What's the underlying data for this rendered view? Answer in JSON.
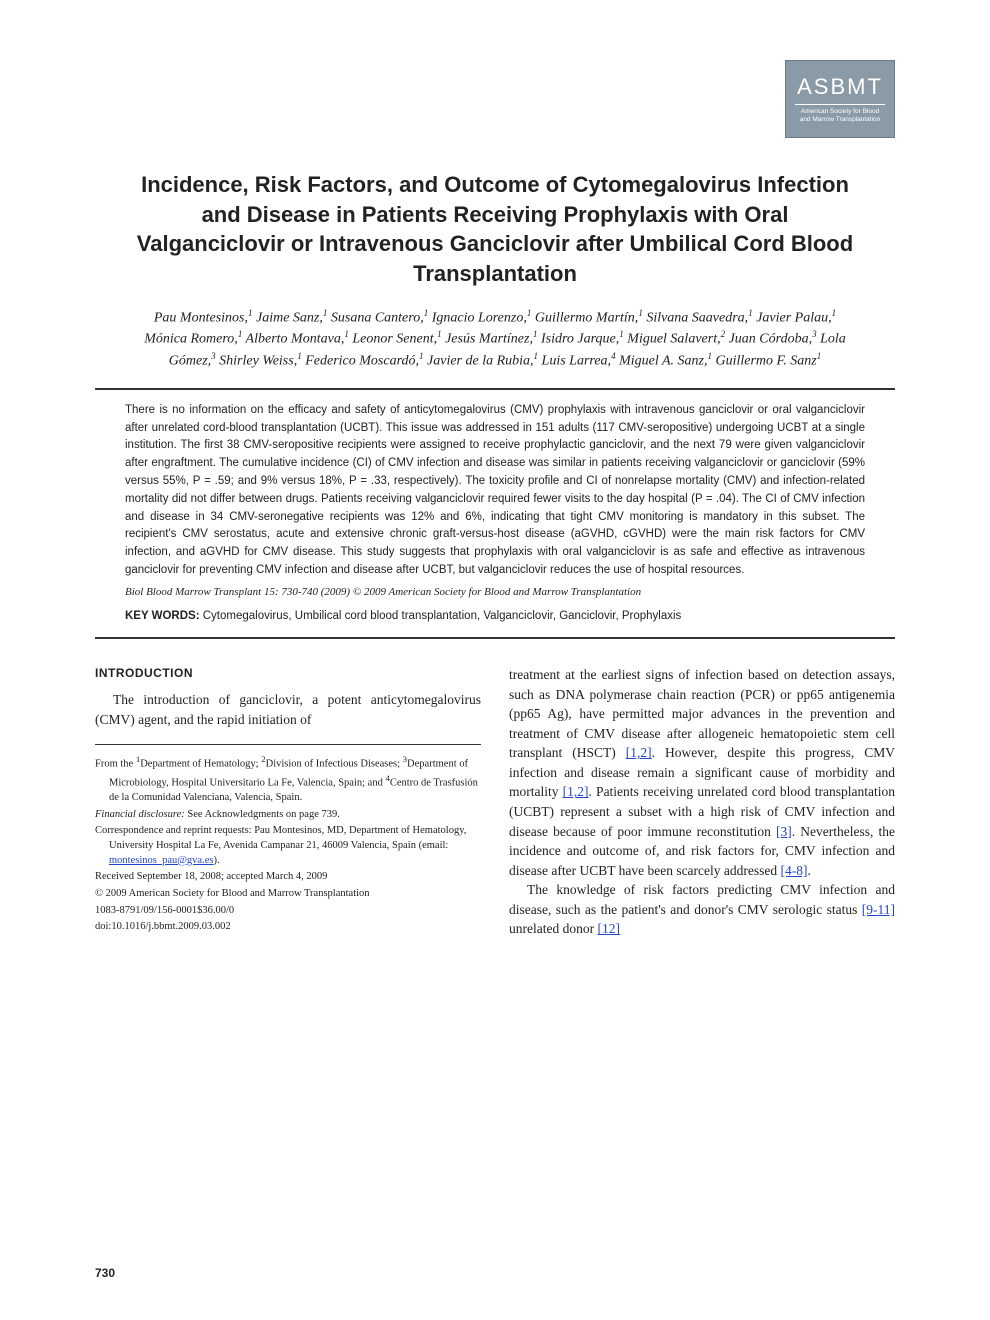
{
  "logo": {
    "main": "ASBMT",
    "sub": "American Society for Blood and Marrow Transplantation"
  },
  "title": "Incidence, Risk Factors, and Outcome of Cytomegalovirus Infection and Disease in Patients Receiving Prophylaxis with Oral Valganciclovir or Intravenous Ganciclovir after Umbilical Cord Blood Transplantation",
  "authors_html": "Pau Montesinos,<sup>1</sup> Jaime Sanz,<sup>1</sup> Susana Cantero,<sup>1</sup> Ignacio Lorenzo,<sup>1</sup> Guillermo Martín,<sup>1</sup> Silvana Saavedra,<sup>1</sup> Javier Palau,<sup>1</sup> Mónica Romero,<sup>1</sup> Alberto Montava,<sup>1</sup> Leonor Senent,<sup>1</sup> Jesús Martínez,<sup>1</sup> Isidro Jarque,<sup>1</sup> Miguel Salavert,<sup>2</sup> Juan Córdoba,<sup>3</sup> Lola Gómez,<sup>3</sup> Shirley Weiss,<sup>1</sup> Federico Moscardó,<sup>1</sup> Javier de la Rubia,<sup>1</sup> Luis Larrea,<sup>4</sup> Miguel A. Sanz,<sup>1</sup> Guillermo F. Sanz<sup>1</sup>",
  "abstract": "There is no information on the efficacy and safety of anticytomegalovirus (CMV) prophylaxis with intravenous ganciclovir or oral valganciclovir after unrelated cord-blood transplantation (UCBT). This issue was addressed in 151 adults (117 CMV-seropositive) undergoing UCBT at a single institution. The first 38 CMV-seropositive recipients were assigned to receive prophylactic ganciclovir, and the next 79 were given valganciclovir after engraftment. The cumulative incidence (CI) of CMV infection and disease was similar in patients receiving valganciclovir or ganciclovir (59% versus 55%, P = .59; and 9% versus 18%, P = .33, respectively). The toxicity profile and CI of nonrelapse mortality (CMV) and infection-related mortality did not differ between drugs. Patients receiving valganciclovir required fewer visits to the day hospital (P = .04). The CI of CMV infection and disease in 34 CMV-seronegative recipients was 12% and 6%, indicating that tight CMV monitoring is mandatory in this subset. The recipient's CMV serostatus, acute and extensive chronic graft-versus-host disease (aGVHD, cGVHD) were the main risk factors for CMV infection, and aGVHD for CMV disease. This study suggests that prophylaxis with oral valganciclovir is as safe and effective as intravenous ganciclovir for preventing CMV infection and disease after UCBT, but valganciclovir reduces the use of hospital resources.",
  "citation": "Biol Blood Marrow Transplant 15: 730-740 (2009) © 2009 American Society for Blood and Marrow Transplantation",
  "keywords_label": "KEY WORDS:",
  "keywords": "Cytomegalovirus, Umbilical cord blood transplantation, Valganciclovir, Ganciclovir, Prophylaxis",
  "intro_head": "INTRODUCTION",
  "intro_left": "The introduction of ganciclovir, a potent anticytomegalovirus (CMV) agent, and the rapid initiation of",
  "footnotes": {
    "affil": "From the <sup>1</sup>Department of Hematology; <sup>2</sup>Division of Infectious Diseases; <sup>3</sup>Department of Microbiology, Hospital Universitario La Fe, Valencia, Spain; and <sup>4</sup>Centro de Trasfusión de la Comunidad Valenciana, Valencia, Spain.",
    "disclosure": "<i>Financial disclosure:</i> See Acknowledgments on page 739.",
    "correspondence": "Correspondence and reprint requests: Pau Montesinos, MD, Department of Hematology, University Hospital La Fe, Avenida Campanar 21, 46009 Valencia, Spain (email: <span class=\"link\">montesinos_pau@gva.es</span>).",
    "received": "Received September 18, 2008; accepted March 4, 2009",
    "copyright": "© 2009 American Society for Blood and Marrow Transplantation",
    "issn": "1083-8791/09/156-0001$36.00/0",
    "doi": "doi:10.1016/j.bbmt.2009.03.002"
  },
  "right_col": "treatment at the earliest signs of infection based on detection assays, such as DNA polymerase chain reaction (PCR) or pp65 antigenemia (pp65 Ag), have permitted major advances in the prevention and treatment of CMV disease after allogeneic hematopoietic stem cell transplant (HSCT) <span class=\"link\">[1,2]</span>. However, despite this progress, CMV infection and disease remain a significant cause of morbidity and mortality <span class=\"link\">[1,2]</span>. Patients receiving unrelated cord blood transplantation (UCBT) represent a subset with a high risk of CMV infection and disease because of poor immune reconstitution <span class=\"link\">[3]</span>. Nevertheless, the incidence and outcome of, and risk factors for, CMV infection and disease after UCBT have been scarcely addressed <span class=\"link\">[4-8]</span>.",
  "right_col_p2": "The knowledge of risk factors predicting CMV infection and disease, such as the patient's and donor's CMV serologic status <span class=\"link\">[9-11]</span> unrelated donor <span class=\"link\">[12]</span>",
  "page_number": "730",
  "colors": {
    "text": "#222222",
    "logo_bg": "#8a9aa6",
    "logo_border": "#6b7a86",
    "link": "#2244cc",
    "rule": "#333333"
  }
}
